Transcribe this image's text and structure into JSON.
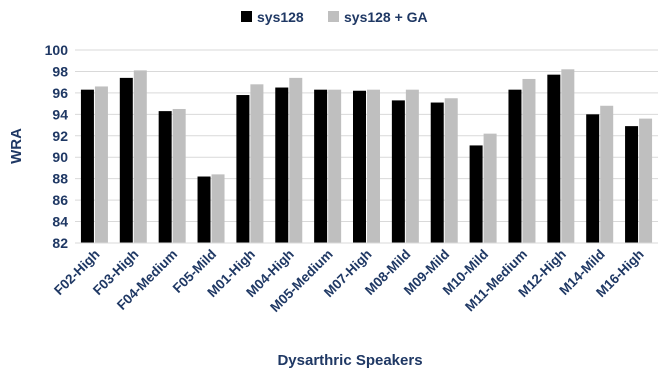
{
  "chart_data": {
    "type": "bar",
    "title": "",
    "xlabel": "Dysarthric Speakers",
    "ylabel": "WRA",
    "ylim": [
      82,
      100
    ],
    "yticks": [
      82,
      84,
      86,
      88,
      90,
      92,
      94,
      96,
      98,
      100
    ],
    "grid": true,
    "legend_position": "top",
    "categories": [
      "F02-High",
      "F03-High",
      "F04-Medium",
      "F05-Mild",
      "M01-High",
      "M04-High",
      "M05-Medium",
      "M07-High",
      "M08-Mild",
      "M09-Mild",
      "M10-Mild",
      "M11-Medium",
      "M12-High",
      "M14-Mild",
      "M16-High"
    ],
    "series": [
      {
        "name": "sys128",
        "color": "#000000",
        "values": [
          96.3,
          97.4,
          94.3,
          88.2,
          95.8,
          96.5,
          96.3,
          96.2,
          95.3,
          95.1,
          91.1,
          96.3,
          97.7,
          94.0,
          92.9
        ]
      },
      {
        "name": "sys128 + GA",
        "color": "#bfbfbf",
        "values": [
          96.6,
          98.1,
          94.5,
          88.4,
          96.8,
          97.4,
          96.3,
          96.3,
          96.3,
          95.5,
          92.2,
          97.3,
          98.2,
          94.8,
          93.6
        ]
      }
    ]
  }
}
